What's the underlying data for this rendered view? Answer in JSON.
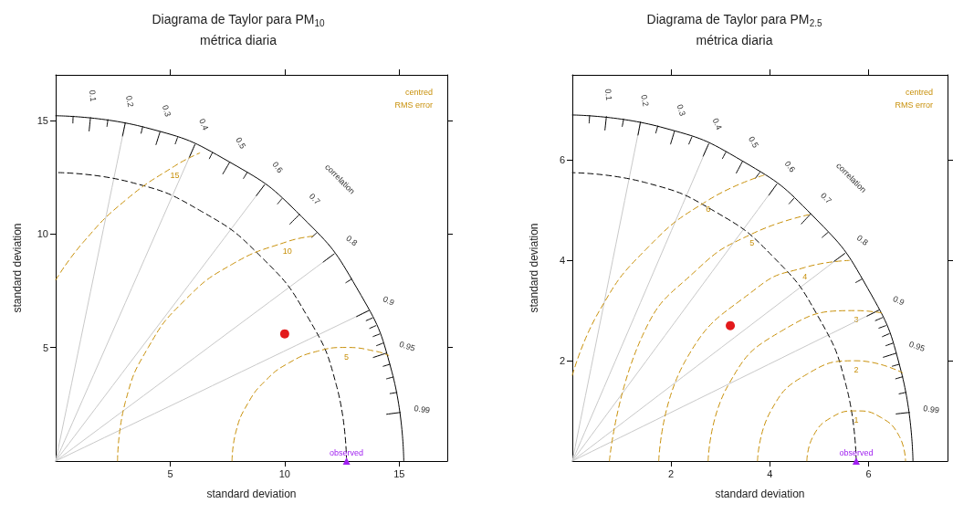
{
  "chart_data": [
    {
      "type": "scatter",
      "title": "Diagrama de Taylor para PM$_{10}$",
      "subtitle": "métrica diaria",
      "xlabel": "standard deviation",
      "ylabel": "standard deviation",
      "xlim": [
        0,
        17.1
      ],
      "ylim": [
        0,
        17
      ],
      "xticks": [
        5,
        10,
        15
      ],
      "yticks": [
        5,
        10,
        15
      ],
      "grid": false,
      "legend": false,
      "annotations": [
        "correlation",
        "centred",
        "RMS error",
        {
          "text": "0.1",
          "x": 1.52,
          "y": 15.12
        },
        {
          "text": "0.2",
          "x": 3.04,
          "y": 14.89
        },
        {
          "text": "0.3",
          "x": 4.56,
          "y": 14.5
        },
        {
          "text": "0.4",
          "x": 6.08,
          "y": 13.93
        },
        {
          "text": "0.5",
          "x": 7.6,
          "y": 13.16
        },
        {
          "text": "0.6",
          "x": 9.12,
          "y": 12.16
        },
        {
          "text": "0.7",
          "x": 10.64,
          "y": 10.85
        },
        {
          "text": "0.8",
          "x": 12.16,
          "y": 9.12
        },
        {
          "text": "0.9",
          "x": 13.68,
          "y": 6.63
        },
        {
          "text": "0.95",
          "x": 14.44,
          "y": 4.75
        },
        {
          "text": "0.99",
          "x": 15.05,
          "y": 2.14
        },
        {
          "text": "5",
          "x": 12.7,
          "y": 5
        },
        {
          "text": "10",
          "x": 10.11,
          "y": 9.66
        },
        {
          "text": "15",
          "x": 5.2,
          "y": 12.99
        }
      ],
      "series": [
        {
          "type": "line",
          "color": "#c8c8c8",
          "line_style": "solid",
          "marker": "none",
          "x": [
            0,
            3.04,
            null,
            0,
            6.08,
            null,
            0,
            9.12,
            null,
            0,
            12.16,
            null,
            0,
            13.68
          ],
          "values": [
            0,
            14.89,
            null,
            0,
            13.93,
            null,
            0,
            12.16,
            null,
            0,
            9.12,
            null,
            0,
            6.63
          ]
        },
        {
          "type": "line",
          "color": "#000000",
          "line_style": "solid",
          "marker": "none",
          "x": [
            15.2,
            14.68,
            13.16,
            10.75,
            7.6,
            3.93,
            0
          ],
          "values": [
            0,
            3.93,
            7.6,
            10.75,
            13.16,
            14.68,
            15.2
          ]
        },
        {
          "type": "line",
          "color": "#000000",
          "line_style": "dashed",
          "marker": "none",
          "x": [
            12.7,
            12.27,
            11,
            8.98,
            6.35,
            3.29,
            0
          ],
          "values": [
            0,
            3.29,
            6.35,
            8.98,
            11,
            12.27,
            12.7
          ]
        },
        {
          "type": "line",
          "color": "#000000",
          "line_style": "solid",
          "marker": "none",
          "x": [
            0.76,
            0.75,
            null,
            1.52,
            1.46,
            null,
            2.28,
            2.24,
            null,
            3.04,
            2.92,
            null,
            3.8,
            3.73,
            null,
            4.56,
            4.38,
            null,
            5.32,
            5.22,
            null,
            6.08,
            5.84,
            null,
            6.84,
            6.71,
            null,
            7.6,
            7.3,
            null,
            8.36,
            8.2,
            null,
            9.12,
            8.76,
            null,
            9.88,
            9.69,
            null,
            10.64,
            10.22,
            null,
            11.4,
            11.18,
            null,
            12.16,
            11.68,
            null,
            12.92,
            12.67,
            null,
            13.68,
            13.14,
            null,
            13.83,
            13.56,
            null,
            13.98,
            13.71,
            null,
            14.14,
            13.86,
            null,
            14.29,
            14.01,
            null,
            14.44,
            13.87,
            null,
            14.59,
            14.3,
            null,
            14.74,
            14.45,
            null,
            14.9,
            14.6,
            null,
            15.05,
            14.45
          ],
          "values": [
            15.18,
            14.88,
            null,
            15.12,
            14.53,
            null,
            15.03,
            14.73,
            null,
            14.89,
            14.31,
            null,
            14.72,
            14.43,
            null,
            14.5,
            13.93,
            null,
            14.24,
            13.96,
            null,
            13.93,
            13.38,
            null,
            13.57,
            13.31,
            null,
            13.16,
            12.64,
            null,
            12.7,
            12.44,
            null,
            12.16,
            11.68,
            null,
            11.55,
            11.32,
            null,
            10.85,
            10.43,
            null,
            10.05,
            9.85,
            null,
            9.12,
            8.76,
            null,
            8.01,
            7.85,
            null,
            6.63,
            6.36,
            null,
            6.3,
            6.18,
            null,
            5.96,
            5.84,
            null,
            5.59,
            5.48,
            null,
            5.19,
            5.08,
            null,
            4.75,
            4.56,
            null,
            4.26,
            4.17,
            null,
            3.7,
            3.62,
            null,
            3.02,
            2.97,
            null,
            2.14,
            2.06
          ]
        },
        {
          "type": "line",
          "color": "#c8900a",
          "line_style": "dashed",
          "marker": "none",
          "x": [
            7.7,
            7.87,
            8.37,
            9.16,
            10.2,
            11.41,
            12.7,
            13.99,
            14.54
          ],
          "values": [
            0,
            1.29,
            2.5,
            3.54,
            4.33,
            4.83,
            5,
            4.83,
            4.65
          ]
        },
        {
          "type": "line",
          "color": "#c8900a",
          "line_style": "dashed",
          "marker": "none",
          "x": [
            2.7,
            3.04,
            4.04,
            5.63,
            7.7,
            10.11,
            11.34
          ],
          "values": [
            0,
            2.59,
            5,
            7.07,
            8.66,
            9.66,
            9.91
          ]
        },
        {
          "type": "line",
          "color": "#c8900a",
          "line_style": "dashed",
          "marker": "none",
          "x": [
            0,
            1.21,
            3.06,
            5.2,
            6.29
          ],
          "values": [
            7.97,
            9.64,
            11.49,
            12.99,
            13.56
          ]
        },
        {
          "color": "#e31a1c",
          "marker": "circle",
          "x": [
            10.0
          ],
          "values": [
            5.6
          ]
        },
        {
          "name": "observed",
          "color": "#a020f0",
          "marker": "triangle",
          "x": [
            12.7
          ],
          "values": [
            0
          ]
        }
      ]
    },
    {
      "type": "scatter",
      "title": "Diagrama de Taylor para PM$_{2.5}$",
      "subtitle": "métrica diaria",
      "xlabel": "standard deviation",
      "ylabel": "standard deviation",
      "xlim": [
        0,
        7.6
      ],
      "ylim": [
        0,
        7.7
      ],
      "xticks": [
        2,
        4,
        6
      ],
      "yticks": [
        2,
        4,
        6
      ],
      "grid": false,
      "legend": false,
      "annotations": [
        "correlation",
        "centred",
        "RMS error",
        {
          "text": "0.1",
          "x": 0.69,
          "y": 6.87
        },
        {
          "text": "0.2",
          "x": 1.38,
          "y": 6.76
        },
        {
          "text": "0.3",
          "x": 2.07,
          "y": 6.58
        },
        {
          "text": "0.4",
          "x": 2.76,
          "y": 6.32
        },
        {
          "text": "0.5",
          "x": 3.45,
          "y": 5.98
        },
        {
          "text": "0.6",
          "x": 4.14,
          "y": 5.52
        },
        {
          "text": "0.7",
          "x": 4.83,
          "y": 4.93
        },
        {
          "text": "0.8",
          "x": 5.52,
          "y": 4.14
        },
        {
          "text": "0.9",
          "x": 6.21,
          "y": 3.01
        },
        {
          "text": "0.95",
          "x": 6.56,
          "y": 2.15
        },
        {
          "text": "0.99",
          "x": 6.83,
          "y": 0.97
        },
        {
          "text": "1",
          "x": 5.75,
          "y": 1
        },
        {
          "text": "2",
          "x": 5.75,
          "y": 2
        },
        {
          "text": "3",
          "x": 5.75,
          "y": 3
        },
        {
          "text": "4",
          "x": 4.71,
          "y": 3.86
        },
        {
          "text": "5",
          "x": 3.64,
          "y": 4.53
        },
        {
          "text": "6",
          "x": 2.75,
          "y": 5.2
        }
      ],
      "series": [
        {
          "type": "line",
          "color": "#c8c8c8",
          "line_style": "solid",
          "marker": "none",
          "x": [
            0,
            1.38,
            null,
            0,
            2.76,
            null,
            0,
            4.14,
            null,
            0,
            5.52,
            null,
            0,
            6.21
          ],
          "values": [
            0,
            6.76,
            null,
            0,
            6.32,
            null,
            0,
            5.52,
            null,
            0,
            4.14,
            null,
            0,
            3.01
          ]
        },
        {
          "type": "line",
          "color": "#000000",
          "line_style": "solid",
          "marker": "none",
          "x": [
            6.9,
            6.66,
            5.98,
            4.88,
            3.45,
            1.79,
            0
          ],
          "values": [
            0,
            1.79,
            3.45,
            4.88,
            5.98,
            6.66,
            6.9
          ]
        },
        {
          "type": "line",
          "color": "#000000",
          "line_style": "dashed",
          "marker": "none",
          "x": [
            5.75,
            5.55,
            4.98,
            4.07,
            2.88,
            1.49,
            0
          ],
          "values": [
            0,
            1.49,
            2.88,
            4.07,
            4.98,
            5.55,
            5.75
          ]
        },
        {
          "type": "line",
          "color": "#000000",
          "line_style": "solid",
          "marker": "none",
          "x": [
            0.35,
            0.34,
            null,
            0.69,
            0.66,
            null,
            1.04,
            1.01,
            null,
            1.38,
            1.33,
            null,
            1.73,
            1.69,
            null,
            2.07,
            1.99,
            null,
            2.42,
            2.36,
            null,
            2.76,
            2.65,
            null,
            3.11,
            3.04,
            null,
            3.45,
            3.32,
            null,
            3.8,
            3.71,
            null,
            4.14,
            3.98,
            null,
            4.49,
            4.39,
            null,
            4.83,
            4.64,
            null,
            5.18,
            5.06,
            null,
            5.52,
            5.3,
            null,
            5.87,
            5.74,
            null,
            6.21,
            5.97,
            null,
            6.28,
            6.14,
            null,
            6.35,
            6.21,
            null,
            6.42,
            6.28,
            null,
            6.49,
            6.35,
            null,
            6.56,
            6.3,
            null,
            6.62,
            6.48,
            null,
            6.69,
            6.55,
            null,
            6.76,
            6.62,
            null,
            6.83,
            6.56
          ],
          "values": [
            6.89,
            6.74,
            null,
            6.87,
            6.6,
            null,
            6.82,
            6.67,
            null,
            6.76,
            6.5,
            null,
            6.68,
            6.54,
            null,
            6.58,
            6.32,
            null,
            6.46,
            6.32,
            null,
            6.32,
            6.08,
            null,
            6.16,
            6.03,
            null,
            5.98,
            5.74,
            null,
            5.76,
            5.64,
            null,
            5.52,
            5.3,
            null,
            5.24,
            5.13,
            null,
            4.93,
            4.73,
            null,
            4.56,
            4.46,
            null,
            4.14,
            3.98,
            null,
            3.63,
            3.56,
            null,
            3.01,
            2.89,
            null,
            2.86,
            2.8,
            null,
            2.7,
            2.65,
            null,
            2.54,
            2.48,
            null,
            2.35,
            2.3,
            null,
            2.15,
            2.07,
            null,
            1.93,
            1.89,
            null,
            1.68,
            1.64,
            null,
            1.37,
            1.34,
            null,
            0.97,
            0.94
          ]
        },
        {
          "type": "line",
          "color": "#c8900a",
          "line_style": "dashed",
          "marker": "none",
          "x": [
            4.75,
            4.88,
            5.25,
            5.75,
            6.25,
            6.62,
            6.75
          ],
          "values": [
            0,
            0.5,
            0.87,
            1,
            0.87,
            0.5,
            0
          ]
        },
        {
          "type": "line",
          "color": "#c8900a",
          "line_style": "dashed",
          "marker": "none",
          "x": [
            3.75,
            4.02,
            4.75,
            5.75,
            6.69
          ],
          "values": [
            0,
            1,
            1.73,
            2,
            1.76
          ]
        },
        {
          "type": "line",
          "color": "#c8900a",
          "line_style": "dashed",
          "marker": "none",
          "x": [
            2.75,
            3.15,
            4.25,
            5.75,
            6.29
          ],
          "values": [
            0,
            1.5,
            2.6,
            3,
            2.95
          ]
        },
        {
          "type": "line",
          "color": "#c8900a",
          "line_style": "dashed",
          "marker": "none",
          "x": [
            1.75,
            2.29,
            3.75,
            4.71,
            5.61
          ],
          "values": [
            0,
            2,
            3.46,
            3.86,
            4
          ]
        },
        {
          "type": "line",
          "color": "#c8900a",
          "line_style": "dashed",
          "marker": "none",
          "x": [
            0.75,
            1.42,
            2.54,
            3.64,
            4.83
          ],
          "values": [
            0,
            2.5,
            3.83,
            4.53,
            4.92
          ]
        },
        {
          "type": "line",
          "color": "#c8900a",
          "line_style": "dashed",
          "marker": "none",
          "x": [
            0,
            0.55,
            1.51,
            2.75,
            3.88
          ],
          "values": [
            1.71,
            3,
            4.24,
            5.2,
            5.7
          ]
        },
        {
          "color": "#e31a1c",
          "marker": "circle",
          "x": [
            3.2
          ],
          "values": [
            2.7
          ]
        },
        {
          "name": "observed",
          "color": "#a020f0",
          "marker": "triangle",
          "x": [
            5.75
          ],
          "values": [
            0
          ]
        }
      ]
    }
  ]
}
